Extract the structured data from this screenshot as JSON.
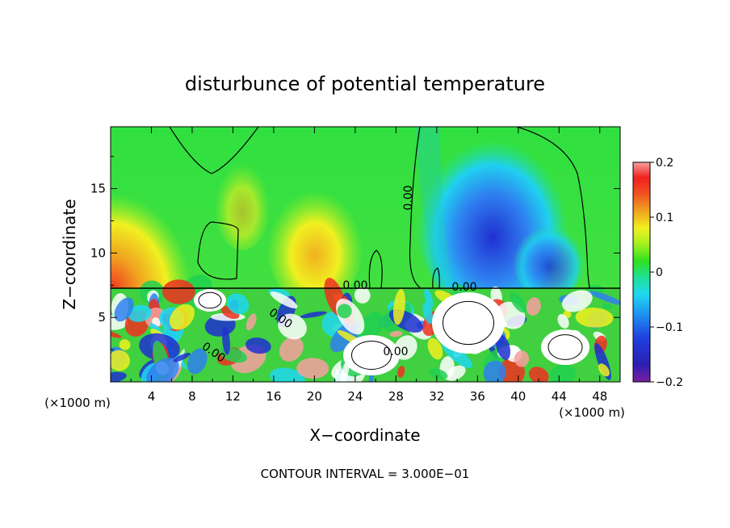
{
  "chart_data": {
    "type": "heatmap",
    "title": "disturbunce of potential temperature",
    "xlabel": "X−coordinate",
    "ylabel": "Z−coordinate",
    "x_unit_left": "(×1000 m)",
    "x_unit_right": "(×1000 m)",
    "xlim": [
      0,
      50
    ],
    "ylim": [
      0,
      19.8
    ],
    "xticks": [
      4,
      8,
      12,
      16,
      20,
      24,
      28,
      32,
      36,
      40,
      44,
      48
    ],
    "yticks": [
      5,
      10,
      15
    ],
    "colorbar": {
      "vmin": -0.2,
      "vmax": 0.2,
      "ticks": [
        0.2,
        0.1,
        0,
        -0.1,
        -0.2
      ],
      "tick_labels": [
        "0.2",
        "0.1",
        "0",
        "−0.1",
        "−0.2"
      ]
    },
    "contour_labels": [
      "0.00",
      "0.00",
      "0.00",
      "0.00",
      "0.00",
      "0.00"
    ],
    "footer": "CONTOUR INTERVAL = 3.000E−01",
    "grid": false
  }
}
